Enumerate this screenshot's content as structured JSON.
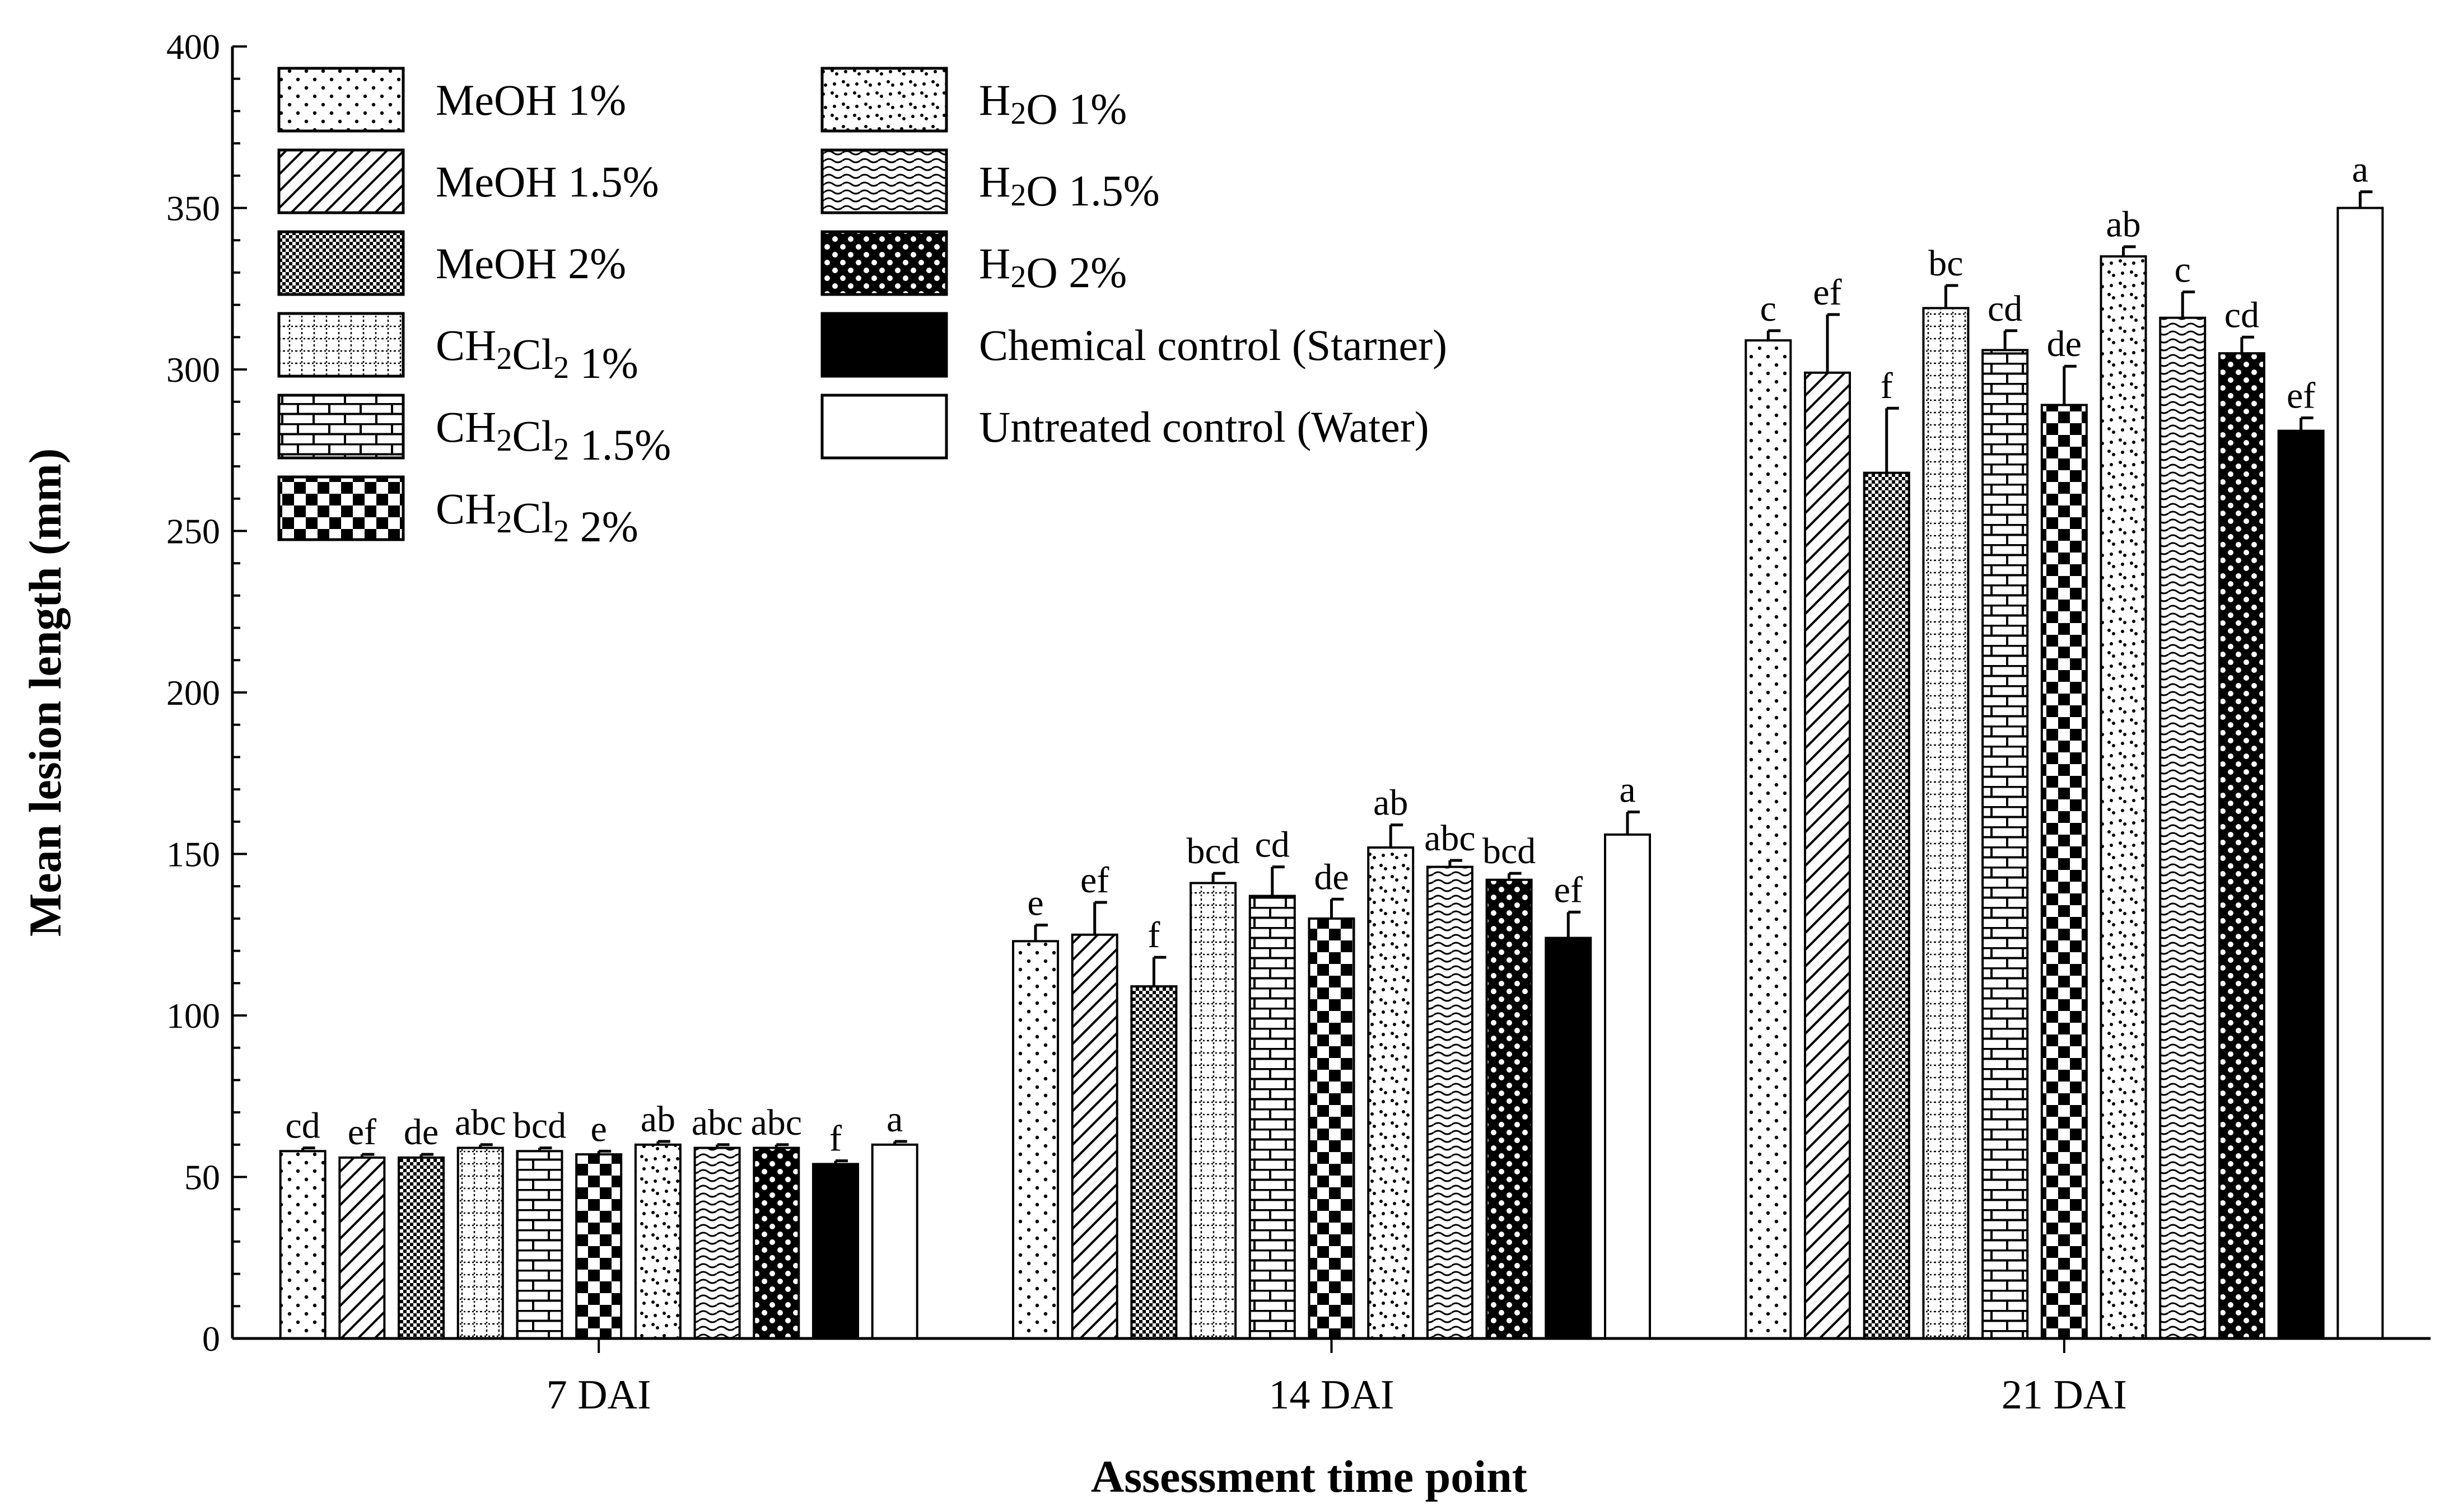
{
  "chart_data": {
    "type": "bar",
    "xlabel": "Assessment time point",
    "ylabel": "Mean lesion length (mm)",
    "ylim": [
      0,
      400
    ],
    "yticks": [
      0,
      50,
      100,
      150,
      200,
      250,
      300,
      350,
      400
    ],
    "ytick_labels": [
      "0",
      "50",
      "100",
      "150",
      "200",
      "250",
      "300",
      "350",
      "400"
    ],
    "categories": [
      "7 DAI",
      "14 DAI",
      "21 DAI"
    ],
    "legend_position": "top-left",
    "series": [
      {
        "name": "MeOH 1%",
        "pattern": "dots-sparse",
        "values": [
          58,
          123,
          309
        ],
        "errors": [
          1,
          5,
          3
        ],
        "labels": [
          "cd",
          "e",
          "c"
        ]
      },
      {
        "name": "MeOH 1.5%",
        "pattern": "diagonal",
        "values": [
          56,
          125,
          299
        ],
        "errors": [
          1,
          10,
          18
        ],
        "labels": [
          "ef",
          "ef",
          "ef"
        ]
      },
      {
        "name": "MeOH 2%",
        "pattern": "checker-fine",
        "values": [
          56,
          109,
          268
        ],
        "errors": [
          1,
          9,
          20
        ],
        "labels": [
          "de",
          "f",
          "f"
        ]
      },
      {
        "name": "CH2Cl2 1%",
        "pattern": "dotted-grid",
        "values": [
          59,
          141,
          319
        ],
        "errors": [
          1,
          3,
          7
        ],
        "labels": [
          "abc",
          "bcd",
          "bc"
        ]
      },
      {
        "name": "CH2Cl2 1.5%",
        "pattern": "brick",
        "values": [
          58,
          137,
          306
        ],
        "errors": [
          1,
          9,
          6
        ],
        "labels": [
          "bcd",
          "cd",
          "cd"
        ]
      },
      {
        "name": "CH2Cl2 2%",
        "pattern": "checker-large",
        "values": [
          57,
          130,
          289
        ],
        "errors": [
          1,
          6,
          12
        ],
        "labels": [
          "e",
          "de",
          "de"
        ]
      },
      {
        "name": "H2O 1%",
        "pattern": "dots-zigzag",
        "values": [
          60,
          152,
          335
        ],
        "errors": [
          1,
          7,
          3
        ],
        "labels": [
          "ab",
          "ab",
          "ab"
        ]
      },
      {
        "name": "H2O 1.5%",
        "pattern": "waves",
        "values": [
          59,
          146,
          316
        ],
        "errors": [
          1,
          2,
          8
        ],
        "labels": [
          "abc",
          "abc",
          "c"
        ]
      },
      {
        "name": "H2O 2%",
        "pattern": "beads",
        "values": [
          59,
          142,
          305
        ],
        "errors": [
          1,
          2,
          5
        ],
        "labels": [
          "abc",
          "bcd",
          "cd"
        ]
      },
      {
        "name": "Chemical control (Starner)",
        "pattern": "solid-black",
        "values": [
          54,
          124,
          281
        ],
        "errors": [
          1,
          8,
          4
        ],
        "labels": [
          "f",
          "ef",
          "ef"
        ]
      },
      {
        "name": "Untreated control (Water)",
        "pattern": "solid-white",
        "values": [
          60,
          156,
          350
        ],
        "errors": [
          1,
          7,
          5
        ],
        "labels": [
          "a",
          "a",
          "a"
        ]
      }
    ]
  }
}
